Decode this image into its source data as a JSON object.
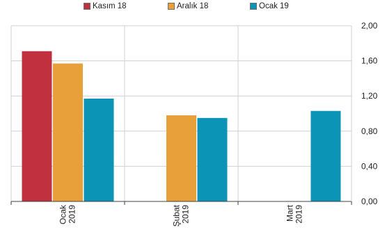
{
  "chart_data": {
    "type": "bar",
    "categories": [
      {
        "line1": "Ocak",
        "line2": "2019"
      },
      {
        "line1": "Şubat",
        "line2": "2019"
      },
      {
        "line1": "Mart",
        "line2": "2019"
      }
    ],
    "series": [
      {
        "name": "Kasım 18",
        "color": "#c0303e",
        "values": [
          1.71,
          null,
          null
        ]
      },
      {
        "name": "Aralık 18",
        "color": "#e8a13a",
        "values": [
          1.57,
          0.98,
          null
        ]
      },
      {
        "name": "Ocak 19",
        "color": "#0b94b6",
        "values": [
          1.17,
          0.95,
          1.03
        ]
      }
    ],
    "y_axis": {
      "position": "right",
      "ylim": [
        0,
        2.0
      ],
      "ticks": [
        0,
        0.4,
        0.8,
        1.2,
        1.6,
        2.0
      ],
      "tick_labels": [
        "0,00",
        "0,40",
        "0,80",
        "1,20",
        "1,60",
        "2,00"
      ]
    },
    "grid": {
      "horizontal": true,
      "vertical": true
    },
    "legend_position": "top-center",
    "title": "",
    "xlabel": "",
    "ylabel": ""
  }
}
